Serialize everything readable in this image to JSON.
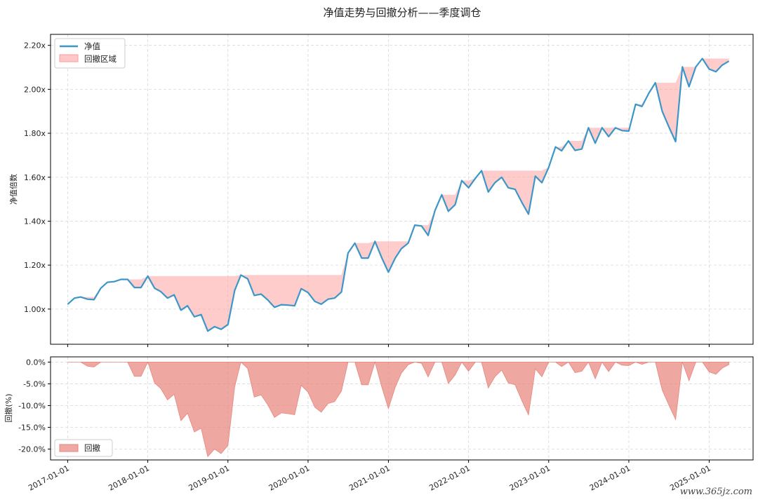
{
  "chart_data": [
    {
      "type": "line",
      "title": "净值走势与回撤分析——季度调仓",
      "ylabel": "净值倍数",
      "ylim": [
        0.84,
        2.25
      ],
      "yticks": [
        "1.00x",
        "1.20x",
        "1.40x",
        "1.60x",
        "1.80x",
        "2.00x",
        "2.20x"
      ],
      "ytick_values": [
        1.0,
        1.2,
        1.4,
        1.6,
        1.8,
        2.0,
        2.2
      ],
      "xlim": [
        "2016-10-15",
        "2025-07-20"
      ],
      "grid": true,
      "legend": "top-left",
      "legend_entries": [
        "净值",
        "回撤区域"
      ],
      "colors": {
        "line": "#3c96c8",
        "fill": "#ff9a9a"
      },
      "series": [
        {
          "name": "净值",
          "x": [
            "2017-01-01",
            "2017-02-01",
            "2017-03-01",
            "2017-04-01",
            "2017-05-01",
            "2017-06-01",
            "2017-07-01",
            "2017-08-01",
            "2017-09-01",
            "2017-10-01",
            "2017-11-01",
            "2017-12-01",
            "2018-01-01",
            "2018-02-01",
            "2018-03-01",
            "2018-04-01",
            "2018-05-01",
            "2018-06-01",
            "2018-07-01",
            "2018-08-01",
            "2018-09-01",
            "2018-10-01",
            "2018-11-01",
            "2018-12-01",
            "2019-01-01",
            "2019-02-01",
            "2019-03-01",
            "2019-04-01",
            "2019-05-01",
            "2019-06-01",
            "2019-07-01",
            "2019-08-01",
            "2019-09-01",
            "2019-10-01",
            "2019-11-01",
            "2019-12-01",
            "2020-01-01",
            "2020-02-01",
            "2020-03-01",
            "2020-04-01",
            "2020-05-01",
            "2020-06-01",
            "2020-07-01",
            "2020-08-01",
            "2020-09-01",
            "2020-10-01",
            "2020-11-01",
            "2020-12-01",
            "2021-01-01",
            "2021-02-01",
            "2021-03-01",
            "2021-04-01",
            "2021-05-01",
            "2021-06-01",
            "2021-07-01",
            "2021-08-01",
            "2021-09-01",
            "2021-10-01",
            "2021-11-01",
            "2021-12-01",
            "2022-01-01",
            "2022-02-01",
            "2022-03-01",
            "2022-04-01",
            "2022-05-01",
            "2022-06-01",
            "2022-07-01",
            "2022-08-01",
            "2022-09-01",
            "2022-10-01",
            "2022-11-01",
            "2022-12-01",
            "2023-01-01",
            "2023-02-01",
            "2023-03-01",
            "2023-04-01",
            "2023-05-01",
            "2023-06-01",
            "2023-07-01",
            "2023-08-01",
            "2023-09-01",
            "2023-10-01",
            "2023-11-01",
            "2023-12-01",
            "2024-01-01",
            "2024-02-01",
            "2024-03-01",
            "2024-04-01",
            "2024-05-01",
            "2024-06-01",
            "2024-07-01",
            "2024-08-01",
            "2024-09-01",
            "2024-10-01",
            "2024-11-01",
            "2024-12-01",
            "2025-01-01",
            "2025-02-01",
            "2025-03-01",
            "2025-04-01"
          ],
          "values": [
            1.022,
            1.05,
            1.055,
            1.045,
            1.043,
            1.095,
            1.122,
            1.125,
            1.135,
            1.135,
            1.098,
            1.098,
            1.15,
            1.095,
            1.08,
            1.05,
            1.065,
            0.995,
            1.015,
            0.965,
            0.975,
            0.9,
            0.92,
            0.908,
            0.93,
            1.085,
            1.155,
            1.138,
            1.062,
            1.068,
            1.042,
            1.008,
            1.02,
            1.018,
            1.015,
            1.093,
            1.075,
            1.035,
            1.022,
            1.045,
            1.05,
            1.078,
            1.255,
            1.3,
            1.232,
            1.232,
            1.308,
            1.235,
            1.168,
            1.232,
            1.275,
            1.3,
            1.382,
            1.378,
            1.335,
            1.448,
            1.52,
            1.445,
            1.475,
            1.585,
            1.552,
            1.595,
            1.63,
            1.533,
            1.575,
            1.6,
            1.552,
            1.545,
            1.485,
            1.432,
            1.605,
            1.575,
            1.645,
            1.738,
            1.72,
            1.765,
            1.722,
            1.728,
            1.825,
            1.755,
            1.825,
            1.785,
            1.825,
            1.812,
            1.81,
            1.932,
            1.922,
            1.982,
            2.03,
            1.9,
            1.83,
            1.762,
            2.102,
            2.012,
            2.102,
            2.14,
            2.092,
            2.08,
            2.11,
            2.128
          ]
        },
        {
          "name": "回撤区域",
          "values": [
            1.022,
            1.05,
            1.055,
            1.055,
            1.055,
            1.095,
            1.122,
            1.125,
            1.135,
            1.135,
            1.135,
            1.135,
            1.15,
            1.15,
            1.15,
            1.15,
            1.15,
            1.15,
            1.15,
            1.15,
            1.15,
            1.15,
            1.15,
            1.15,
            1.15,
            1.15,
            1.155,
            1.155,
            1.155,
            1.155,
            1.155,
            1.155,
            1.155,
            1.155,
            1.155,
            1.155,
            1.155,
            1.155,
            1.155,
            1.155,
            1.155,
            1.155,
            1.255,
            1.3,
            1.3,
            1.3,
            1.308,
            1.308,
            1.308,
            1.308,
            1.308,
            1.308,
            1.382,
            1.382,
            1.382,
            1.448,
            1.52,
            1.52,
            1.52,
            1.585,
            1.585,
            1.595,
            1.63,
            1.63,
            1.63,
            1.63,
            1.63,
            1.63,
            1.63,
            1.63,
            1.63,
            1.63,
            1.645,
            1.738,
            1.738,
            1.765,
            1.765,
            1.765,
            1.825,
            1.825,
            1.825,
            1.825,
            1.825,
            1.825,
            1.825,
            1.932,
            1.932,
            1.982,
            2.03,
            2.03,
            2.03,
            2.03,
            2.102,
            2.102,
            2.102,
            2.14,
            2.14,
            2.14,
            2.14,
            2.14
          ]
        }
      ]
    },
    {
      "type": "area",
      "title": "",
      "ylabel": "回撤(%)",
      "ylim": [
        -22.5,
        1.2
      ],
      "yticks": [
        "0.0%",
        "-5.0%",
        "-10.0%",
        "-15.0%",
        "-20.0%"
      ],
      "ytick_values": [
        0,
        -5,
        -10,
        -15,
        -20
      ],
      "xticks": [
        "2017-01-01",
        "2018-01-01",
        "2019-01-01",
        "2020-01-01",
        "2021-01-01",
        "2022-01-01",
        "2023-01-01",
        "2024-01-01",
        "2025-01-01"
      ],
      "grid": true,
      "legend": "bottom-left",
      "legend_entries": [
        "回撤"
      ],
      "colors": {
        "fill": "#e8857d"
      },
      "series": [
        {
          "name": "回撤",
          "note_source": "derived",
          "values": []
        }
      ]
    }
  ],
  "watermark": "www.365jz.com"
}
